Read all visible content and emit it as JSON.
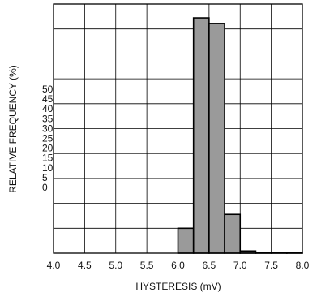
{
  "chart_data": {
    "type": "bar",
    "title": "",
    "xlabel": "HYSTERESIS (mV)",
    "ylabel": "RELATIVE FREQUENCY (%)",
    "x_ticks": [
      "4.0",
      "4.5",
      "5.0",
      "5.5",
      "6.0",
      "6.5",
      "7.0",
      "7.5",
      "8.0"
    ],
    "y_tick_labels": [
      "0",
      "5",
      "10",
      "15",
      "20",
      "25",
      "30",
      "35",
      "40",
      "45",
      "50"
    ],
    "bin_width": 0.25,
    "bins": [
      {
        "start": 6.0,
        "value": 9.0
      },
      {
        "start": 6.25,
        "value": 85.0
      },
      {
        "start": 6.5,
        "value": 83.0
      },
      {
        "start": 6.75,
        "value": 14.0
      },
      {
        "start": 7.0,
        "value": 0.8
      },
      {
        "start": 7.25,
        "value": 0.3
      },
      {
        "start": 7.5,
        "value": 0.2
      },
      {
        "start": 7.75,
        "value": 0.2
      }
    ],
    "xlim": [
      4.0,
      8.0
    ],
    "grid": true,
    "bar_fill": "#9a9a9a",
    "bar_edge": "#000000"
  }
}
